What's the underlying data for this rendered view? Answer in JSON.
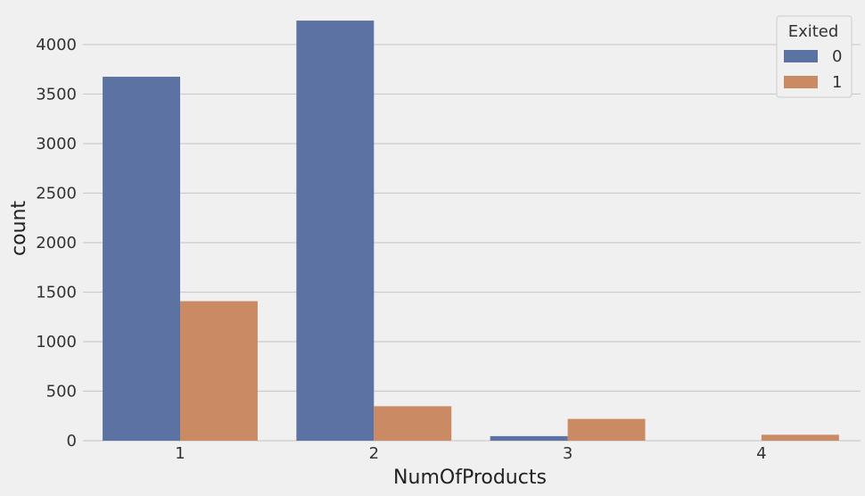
{
  "chart_data": {
    "type": "bar",
    "xlabel": "NumOfProducts",
    "ylabel": "count",
    "categories": [
      "1",
      "2",
      "3",
      "4"
    ],
    "series": [
      {
        "name": "0",
        "color": "#5b72a3",
        "values": [
          3675,
          4242,
          46,
          0
        ]
      },
      {
        "name": "1",
        "color": "#c98a64",
        "values": [
          1409,
          348,
          220,
          60
        ]
      }
    ],
    "ylim": [
      0,
      4450
    ],
    "yticks": [
      0,
      500,
      1000,
      1500,
      2000,
      2500,
      3000,
      3500,
      4000
    ],
    "grid": "horizontal",
    "legend": {
      "title": "Exited",
      "placement": "top-right"
    },
    "background": "#f0f0f0"
  }
}
